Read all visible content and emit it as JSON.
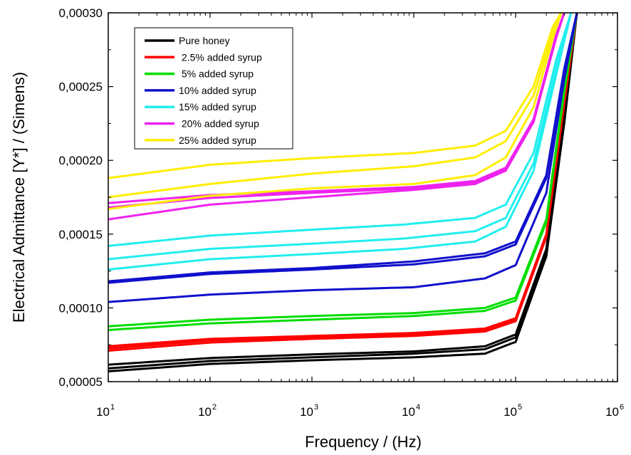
{
  "chart_data": {
    "type": "line",
    "xscale": "log",
    "xlim": [
      10,
      1000000
    ],
    "ylim": [
      5e-05,
      0.0003
    ],
    "xlabel": "Frequency / (Hz)",
    "ylabel": "Electrical Admittance [Y*] / (Simens)",
    "x_tick_labels": [
      {
        "base": "10",
        "exp": "1"
      },
      {
        "base": "10",
        "exp": "2"
      },
      {
        "base": "10",
        "exp": "3"
      },
      {
        "base": "10",
        "exp": "4"
      },
      {
        "base": "10",
        "exp": "5"
      },
      {
        "base": "10",
        "exp": "6"
      }
    ],
    "y_ticks": [
      5e-05,
      0.0001,
      0.00015,
      0.0002,
      0.00025,
      0.0003
    ],
    "y_tick_labels": [
      "0,00005",
      "0,00010",
      "0,00015",
      "0,00020",
      "0,00025",
      "0,00030"
    ],
    "legend_position": "top-left",
    "series": [
      {
        "name": "Pure honey",
        "color": "#000000",
        "curves": [
          {
            "x": [
              10,
              100,
              1000,
              10000,
              50000,
              100000,
              200000,
              300000,
              400000
            ],
            "y": [
              6.15e-05,
              6.6e-05,
              6.85e-05,
              7.05e-05,
              7.4e-05,
              8.2e-05,
              0.00014,
              0.00023,
              0.0003
            ]
          },
          {
            "x": [
              10,
              100,
              1000,
              10000,
              50000,
              100000,
              200000,
              300000,
              400000
            ],
            "y": [
              5.9e-05,
              6.4e-05,
              6.65e-05,
              6.9e-05,
              7.2e-05,
              8e-05,
              0.000138,
              0.000228,
              0.0003
            ]
          },
          {
            "x": [
              10,
              100,
              1000,
              10000,
              50000,
              100000,
              200000,
              300000,
              400000
            ],
            "y": [
              5.7e-05,
              6.2e-05,
              6.45e-05,
              6.65e-05,
              6.9e-05,
              7.7e-05,
              0.000135,
              0.000225,
              0.0003
            ]
          }
        ]
      },
      {
        "name": " 2.5% added syrup",
        "color": "#ff0000",
        "curves": [
          {
            "x": [
              10,
              100,
              1000,
              10000,
              50000,
              100000,
              200000,
              300000,
              400000
            ],
            "y": [
              7.4e-05,
              7.9e-05,
              8.1e-05,
              8.3e-05,
              8.6e-05,
              9.3e-05,
              0.00015,
              0.00024,
              0.0003
            ]
          },
          {
            "x": [
              10,
              100,
              1000,
              10000,
              50000,
              100000,
              200000,
              300000,
              400000
            ],
            "y": [
              7.25e-05,
              7.8e-05,
              8e-05,
              8.2e-05,
              8.5e-05,
              9.2e-05,
              0.000149,
              0.000239,
              0.0003
            ]
          },
          {
            "x": [
              10,
              100,
              1000,
              10000,
              50000,
              100000,
              200000,
              300000,
              400000
            ],
            "y": [
              7.1e-05,
              7.65e-05,
              7.9e-05,
              8.1e-05,
              8.4e-05,
              9.1e-05,
              0.000148,
              0.000238,
              0.0003
            ]
          }
        ]
      },
      {
        "name": " 5% added syrup",
        "color": "#00dd00",
        "curves": [
          {
            "x": [
              10,
              100,
              1000,
              10000,
              50000,
              100000,
              200000,
              300000,
              400000
            ],
            "y": [
              8.75e-05,
              9.2e-05,
              9.45e-05,
              9.65e-05,
              0.0001,
              0.000107,
              0.00016,
              0.000248,
              0.0003
            ]
          },
          {
            "x": [
              10,
              100,
              1000,
              10000,
              50000,
              100000,
              200000,
              300000,
              400000
            ],
            "y": [
              8.5e-05,
              8.95e-05,
              9.2e-05,
              9.45e-05,
              9.8e-05,
              0.000105,
              0.000158,
              0.000246,
              0.0003
            ]
          }
        ]
      },
      {
        "name": "10% added syrup",
        "color": "#1010cc",
        "curves": [
          {
            "x": [
              10,
              100,
              1000,
              10000,
              50000,
              100000,
              200000,
              300000,
              400000
            ],
            "y": [
              0.000118,
              0.000124,
              0.000127,
              0.0001315,
              0.000137,
              0.000145,
              0.00019,
              0.000262,
              0.0003
            ]
          },
          {
            "x": [
              10,
              100,
              1000,
              10000,
              50000,
              100000,
              200000,
              300000,
              400000
            ],
            "y": [
              0.000117,
              0.000123,
              0.000126,
              0.0001295,
              0.000135,
              0.000143,
              0.000188,
              0.00026,
              0.0003
            ]
          },
          {
            "x": [
              10,
              100,
              1000,
              10000,
              50000,
              100000,
              200000,
              300000,
              400000
            ],
            "y": [
              0.000104,
              0.000109,
              0.000112,
              0.000114,
              0.00012,
              0.000129,
              0.000178,
              0.000255,
              0.0003
            ]
          }
        ]
      },
      {
        "name": "15% added syrup",
        "color": "#22eeee",
        "curves": [
          {
            "x": [
              10,
              100,
              1000,
              8000,
              40000,
              80000,
              150000,
              250000,
              350000
            ],
            "y": [
              0.000142,
              0.000149,
              0.000153,
              0.0001565,
              0.000161,
              0.00017,
              0.000205,
              0.000268,
              0.0003
            ]
          },
          {
            "x": [
              10,
              100,
              1000,
              8000,
              40000,
              80000,
              150000,
              250000,
              350000
            ],
            "y": [
              0.000133,
              0.00014,
              0.0001435,
              0.000147,
              0.000152,
              0.000161,
              0.000198,
              0.000262,
              0.0003
            ]
          },
          {
            "x": [
              10,
              100,
              1000,
              8000,
              40000,
              80000,
              150000,
              250000,
              350000
            ],
            "y": [
              0.000126,
              0.000133,
              0.0001365,
              0.00014,
              0.000145,
              0.000155,
              0.000193,
              0.000258,
              0.0003
            ]
          }
        ]
      },
      {
        "name": " 20% added syrup",
        "color": "#ee22ee",
        "curves": [
          {
            "x": [
              10,
              100,
              1000,
              10000,
              40000,
              80000,
              150000,
              250000,
              300000
            ],
            "y": [
              0.000171,
              0.0001765,
              0.000179,
              0.000182,
              0.000186,
              0.000195,
              0.000228,
              0.000285,
              0.0003
            ]
          },
          {
            "x": [
              10,
              100,
              1000,
              10000,
              40000,
              80000,
              150000,
              250000,
              300000
            ],
            "y": [
              0.000168,
              0.0001745,
              0.000178,
              0.000181,
              0.000185,
              0.000194,
              0.000227,
              0.000284,
              0.0003
            ]
          },
          {
            "x": [
              10,
              100,
              1000,
              10000,
              40000,
              80000,
              150000,
              250000,
              300000
            ],
            "y": [
              0.00016,
              0.00017,
              0.000175,
              0.00018,
              0.000184,
              0.000193,
              0.000226,
              0.000283,
              0.0003
            ]
          }
        ]
      },
      {
        "name": "25% added syrup",
        "color": "#ffee00",
        "curves": [
          {
            "x": [
              10,
              100,
              1000,
              10000,
              40000,
              80000,
              150000,
              230000,
              280000
            ],
            "y": [
              0.000188,
              0.000197,
              0.0002015,
              0.000205,
              0.00021,
              0.00022,
              0.00025,
              0.00029,
              0.0003
            ]
          },
          {
            "x": [
              10,
              100,
              1000,
              10000,
              40000,
              80000,
              150000,
              230000,
              280000
            ],
            "y": [
              0.000175,
              0.000184,
              0.000191,
              0.000196,
              0.000202,
              0.000213,
              0.000244,
              0.000286,
              0.0003
            ]
          },
          {
            "x": [
              10,
              100,
              1000,
              10000,
              40000,
              80000,
              150000,
              230000,
              280000
            ],
            "y": [
              0.000167,
              0.000176,
              0.000181,
              0.000184,
              0.00019,
              0.000202,
              0.000236,
              0.000282,
              0.0003
            ]
          }
        ]
      }
    ]
  }
}
